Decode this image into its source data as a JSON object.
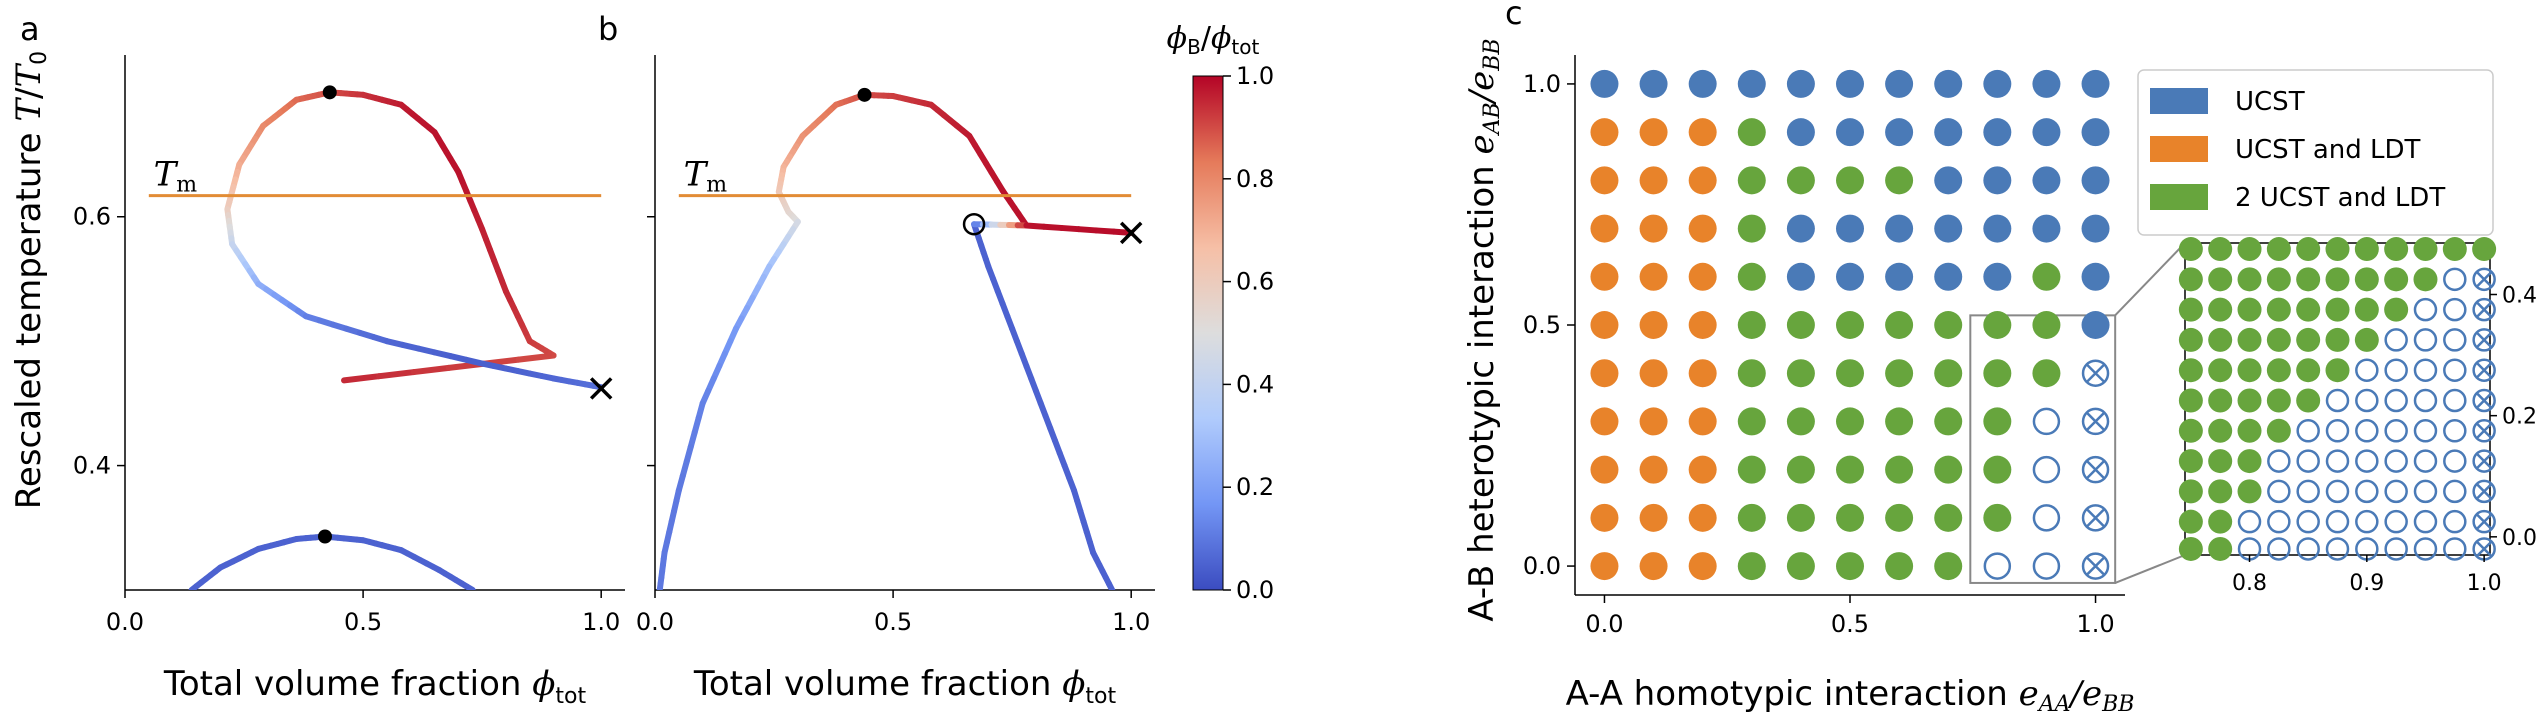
{
  "panel_labels": {
    "a": "a",
    "b": "b",
    "c": "c"
  },
  "chart_data": [
    {
      "panel": "a",
      "type": "line",
      "xlabel": "Total volume fraction φ_tot",
      "ylabel": "Rescaled temperature T/T₀",
      "xlim": [
        0.0,
        1.05
      ],
      "ylim": [
        0.3,
        0.73
      ],
      "xticks": [
        "0.0",
        "0.5",
        "1.0"
      ],
      "yticks": [
        "0.4",
        "0.6"
      ],
      "hline": {
        "label": "T_m",
        "y": 0.617,
        "color": "#e28c35"
      },
      "upper_curve": [
        {
          "x": 0.46,
          "y": 0.4685,
          "c": 0.95
        },
        {
          "x": 0.9,
          "y": 0.4885,
          "c": 0.9
        },
        {
          "x": 0.85,
          "y": 0.5,
          "c": 0.92
        },
        {
          "x": 0.8,
          "y": 0.54,
          "c": 0.95
        },
        {
          "x": 0.75,
          "y": 0.59,
          "c": 0.96
        },
        {
          "x": 0.7,
          "y": 0.636,
          "c": 0.98
        },
        {
          "x": 0.65,
          "y": 0.668,
          "c": 0.98
        },
        {
          "x": 0.58,
          "y": 0.69,
          "c": 0.97
        },
        {
          "x": 0.5,
          "y": 0.698,
          "c": 0.94
        },
        {
          "x": 0.43,
          "y": 0.7,
          "c": 0.9
        },
        {
          "x": 0.36,
          "y": 0.694,
          "c": 0.86
        },
        {
          "x": 0.29,
          "y": 0.673,
          "c": 0.8
        },
        {
          "x": 0.24,
          "y": 0.642,
          "c": 0.72
        },
        {
          "x": 0.215,
          "y": 0.606,
          "c": 0.6
        },
        {
          "x": 0.225,
          "y": 0.578,
          "c": 0.42
        },
        {
          "x": 0.28,
          "y": 0.546,
          "c": 0.25
        },
        {
          "x": 0.38,
          "y": 0.52,
          "c": 0.12
        },
        {
          "x": 0.55,
          "y": 0.5,
          "c": 0.06
        },
        {
          "x": 0.75,
          "y": 0.482,
          "c": 0.04
        },
        {
          "x": 0.9,
          "y": 0.47,
          "c": 0.06
        },
        {
          "x": 1.0,
          "y": 0.463,
          "c": 0.08
        }
      ],
      "lower_curve": [
        {
          "x": 0.14,
          "y": 0.3,
          "c": 0.05
        },
        {
          "x": 0.2,
          "y": 0.318,
          "c": 0.05
        },
        {
          "x": 0.28,
          "y": 0.333,
          "c": 0.05
        },
        {
          "x": 0.36,
          "y": 0.341,
          "c": 0.05
        },
        {
          "x": 0.42,
          "y": 0.343,
          "c": 0.05
        },
        {
          "x": 0.5,
          "y": 0.34,
          "c": 0.05
        },
        {
          "x": 0.58,
          "y": 0.332,
          "c": 0.05
        },
        {
          "x": 0.66,
          "y": 0.316,
          "c": 0.05
        },
        {
          "x": 0.73,
          "y": 0.3,
          "c": 0.05
        }
      ],
      "critical_points": [
        {
          "x": 0.43,
          "y": 0.7
        },
        {
          "x": 0.42,
          "y": 0.343
        }
      ],
      "end_markers": [
        {
          "x": 1.0,
          "y": 0.462,
          "marker": "x"
        }
      ]
    },
    {
      "panel": "b",
      "type": "line",
      "xlabel": "Total volume fraction φ_tot",
      "xlim": [
        0.0,
        1.05
      ],
      "ylim": [
        0.3,
        0.73
      ],
      "xticks": [
        "0.0",
        "0.5",
        "1.0"
      ],
      "hline": {
        "label": "T_m",
        "y": 0.617,
        "color": "#e28c35"
      },
      "upper_curve": [
        {
          "x": 0.78,
          "y": 0.593,
          "c": 0.98
        },
        {
          "x": 0.73,
          "y": 0.621,
          "c": 0.98
        },
        {
          "x": 0.66,
          "y": 0.665,
          "c": 0.97
        },
        {
          "x": 0.58,
          "y": 0.69,
          "c": 0.95
        },
        {
          "x": 0.5,
          "y": 0.697,
          "c": 0.92
        },
        {
          "x": 0.44,
          "y": 0.698,
          "c": 0.9
        },
        {
          "x": 0.38,
          "y": 0.69,
          "c": 0.85
        },
        {
          "x": 0.31,
          "y": 0.665,
          "c": 0.78
        },
        {
          "x": 0.27,
          "y": 0.64,
          "c": 0.7
        },
        {
          "x": 0.26,
          "y": 0.62,
          "c": 0.62
        },
        {
          "x": 0.28,
          "y": 0.604,
          "c": 0.55
        },
        {
          "x": 0.3,
          "y": 0.596,
          "c": 0.5
        }
      ],
      "left_branch": [
        {
          "x": 0.3,
          "y": 0.596,
          "c": 0.48
        },
        {
          "x": 0.24,
          "y": 0.56,
          "c": 0.3
        },
        {
          "x": 0.17,
          "y": 0.51,
          "c": 0.18
        },
        {
          "x": 0.1,
          "y": 0.45,
          "c": 0.12
        },
        {
          "x": 0.05,
          "y": 0.38,
          "c": 0.1
        },
        {
          "x": 0.02,
          "y": 0.33,
          "c": 0.1
        },
        {
          "x": 0.01,
          "y": 0.3,
          "c": 0.1
        }
      ],
      "right_branch": [
        {
          "x": 0.67,
          "y": 0.594,
          "c": 0.05
        },
        {
          "x": 0.7,
          "y": 0.56,
          "c": 0.05
        },
        {
          "x": 0.76,
          "y": 0.5,
          "c": 0.05
        },
        {
          "x": 0.82,
          "y": 0.44,
          "c": 0.05
        },
        {
          "x": 0.88,
          "y": 0.38,
          "c": 0.05
        },
        {
          "x": 0.92,
          "y": 0.33,
          "c": 0.05
        },
        {
          "x": 0.96,
          "y": 0.3,
          "c": 0.05
        }
      ],
      "tail_curve": [
        {
          "x": 0.67,
          "y": 0.594,
          "c": 0.05
        },
        {
          "x": 0.78,
          "y": 0.593,
          "c": 0.98
        },
        {
          "x": 1.0,
          "y": 0.587,
          "c": 0.99
        }
      ],
      "critical_points": [
        {
          "x": 0.44,
          "y": 0.698
        }
      ],
      "open_points": [
        {
          "x": 0.67,
          "y": 0.594
        }
      ],
      "end_markers": [
        {
          "x": 1.0,
          "y": 0.587,
          "marker": "x"
        }
      ]
    },
    {
      "panel": "colorbar",
      "type": "heatmap",
      "title": "φ_B/φ_tot",
      "range": [
        0.0,
        1.0
      ],
      "ticks": [
        "0.0",
        "0.2",
        "0.4",
        "0.6",
        "0.8",
        "1.0"
      ],
      "colormap": [
        "#3b4cc0",
        "#7396f5",
        "#b0cbfc",
        "#dddddd",
        "#f6bfa6",
        "#e57a5a",
        "#b40426"
      ]
    },
    {
      "panel": "c",
      "type": "scatter",
      "xlabel": "A-A homotypic interaction e_AA/e_BB",
      "ylabel": "A-B heterotypic interaction e_AB/e_BB",
      "xticks": [
        "0.0",
        "0.5",
        "1.0"
      ],
      "yticks": [
        "0.0",
        "0.5",
        "1.0"
      ],
      "xlim": [
        -0.06,
        1.06
      ],
      "ylim": [
        -0.06,
        1.06
      ],
      "legend": {
        "position": "top-right",
        "entries": [
          {
            "label": "UCST",
            "color": "#4a7ab7"
          },
          {
            "label": "UCST and LDT",
            "color": "#e8832a"
          },
          {
            "label": "2 UCST and LDT",
            "color": "#67a53d"
          }
        ]
      },
      "category_colors": {
        "U": "#4a7ab7",
        "O": "#e8832a",
        "G": "#67a53d",
        "E": "#4a7ab7",
        "X": "#4a7ab7"
      },
      "x_values": [
        0.0,
        0.1,
        0.2,
        0.3,
        0.4,
        0.5,
        0.6,
        0.7,
        0.8,
        0.9,
        1.0
      ],
      "y_values_top_to_bottom": [
        1.0,
        0.9,
        0.8,
        0.7,
        0.6,
        0.5,
        0.4,
        0.3,
        0.2,
        0.1,
        0.0
      ],
      "grid": [
        "UUUUUUUUUUU",
        "OOOGUUUUUUU",
        "OOOGGGGUUUU",
        "OOOGUUUUUUU",
        "OOOGUUUUUGU",
        "OOOGGGGGGGU",
        "OOOGGGGGGGX",
        "OOOGGGGGGEX",
        "OOOGGGGGGEX",
        "OOOGGGGGGEX",
        "OOOGGGGGEEX"
      ],
      "inset": {
        "xticks": [
          "0.8",
          "0.9",
          "1.0"
        ],
        "yticks": [
          "0.0",
          "0.2",
          "0.4"
        ],
        "xlim": [
          0.745,
          1.005
        ],
        "ylim": [
          -0.03,
          0.485
        ],
        "x_values": [
          0.75,
          0.775,
          0.8,
          0.825,
          0.85,
          0.875,
          0.9,
          0.925,
          0.95,
          0.975,
          1.0
        ],
        "y_values_top_to_bottom": [
          0.475,
          0.425,
          0.375,
          0.325,
          0.275,
          0.225,
          0.175,
          0.125,
          0.075,
          0.025,
          -0.02
        ],
        "grid": [
          "GGGGGGGGGGG",
          "GGGGGGGGGEX",
          "GGGGGGGGEEX",
          "GGGGGGGEEEX",
          "GGGGGGEEEEX",
          "GGGGGEEEEEX",
          "GGGGEEEEEEX",
          "GGGEEEEEEEX",
          "GGGEEEEEEEX",
          "GGEEEEEEEEX",
          "GGEEEEEEEEX"
        ]
      }
    }
  ]
}
